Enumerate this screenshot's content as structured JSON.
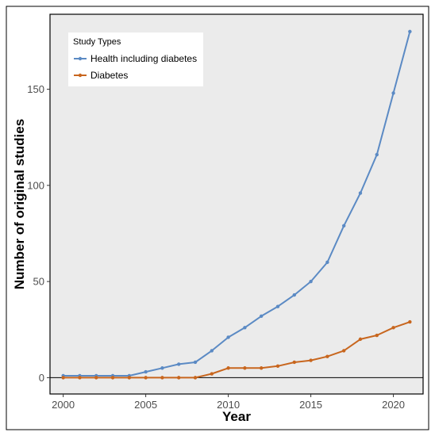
{
  "chart_data": {
    "type": "line",
    "title": "",
    "xlabel": "Year",
    "ylabel": "Number of original studies",
    "xlim": [
      1999.2,
      2021.8
    ],
    "ylim": [
      -8.5,
      189
    ],
    "x_ticks": [
      2000,
      2005,
      2010,
      2015,
      2020
    ],
    "y_ticks": [
      0,
      50,
      100,
      150
    ],
    "grid": false,
    "legend": {
      "title": "Study Types",
      "placement": "top-left"
    },
    "x": [
      2000,
      2001,
      2002,
      2003,
      2004,
      2005,
      2006,
      2007,
      2008,
      2009,
      2010,
      2011,
      2012,
      2013,
      2014,
      2015,
      2016,
      2017,
      2018,
      2019,
      2020,
      2021
    ],
    "series": [
      {
        "name": "Health including diabetes",
        "color": "#5b8ac4",
        "values": [
          1,
          1,
          1,
          1,
          1,
          3,
          5,
          7,
          8,
          14,
          21,
          26,
          32,
          37,
          43,
          50,
          60,
          79,
          96,
          116,
          148,
          180
        ]
      },
      {
        "name": "Diabetes",
        "color": "#c8661e",
        "values": [
          0,
          0,
          0,
          0,
          0,
          0,
          0,
          0,
          0,
          2,
          5,
          5,
          5,
          6,
          8,
          9,
          11,
          14,
          20,
          22,
          26,
          29
        ]
      }
    ],
    "colors": {
      "panel": "#ebebeb",
      "zero_line": "#000000",
      "frame": "#000000"
    }
  }
}
